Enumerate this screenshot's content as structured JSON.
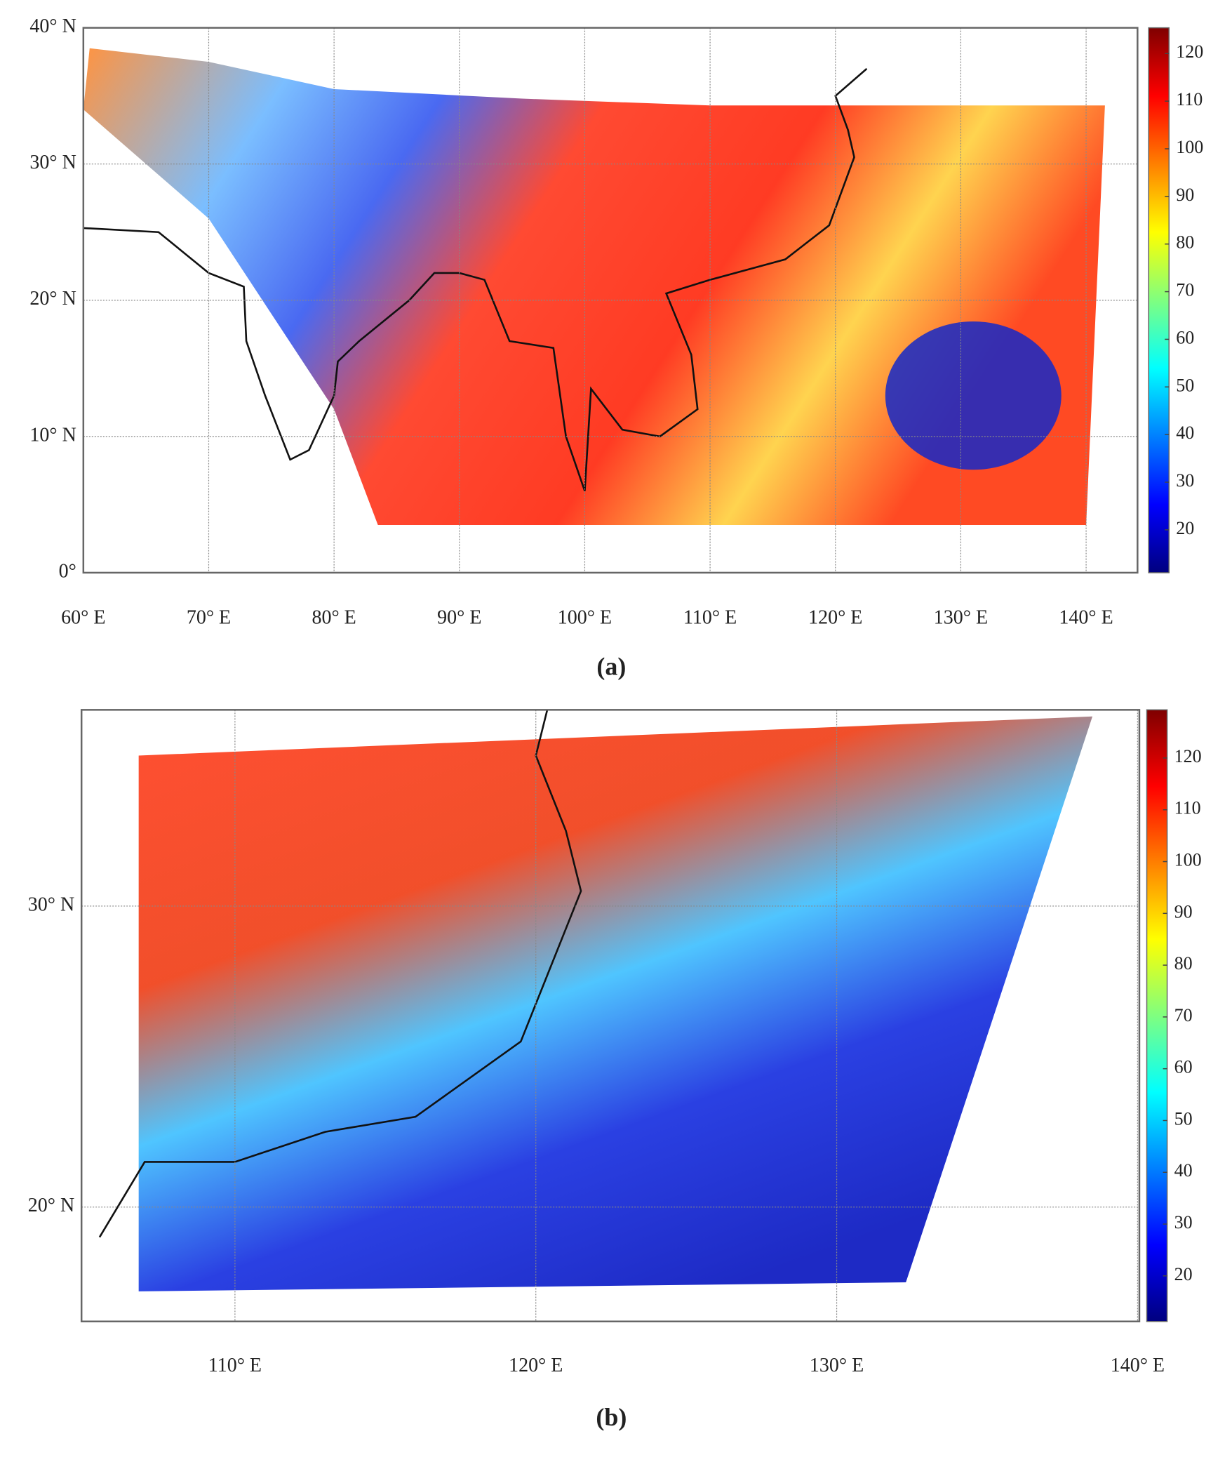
{
  "panels": [
    {
      "label": "(a)",
      "xlim": [
        60,
        144.1
      ],
      "ylim": [
        0,
        40
      ],
      "xticks": [
        {
          "value": 60,
          "label": "60° E"
        },
        {
          "value": 70,
          "label": "70° E"
        },
        {
          "value": 80,
          "label": "80° E"
        },
        {
          "value": 90,
          "label": "90° E"
        },
        {
          "value": 100,
          "label": "100° E"
        },
        {
          "value": 110,
          "label": "110° E"
        },
        {
          "value": 120,
          "label": "120° E"
        },
        {
          "value": 130,
          "label": "130° E"
        },
        {
          "value": 140,
          "label": "140° E"
        }
      ],
      "yticks": [
        {
          "value": 0,
          "label": "0°"
        },
        {
          "value": 10,
          "label": "10° N"
        },
        {
          "value": 20,
          "label": "20° N"
        },
        {
          "value": 30,
          "label": "30° N"
        },
        {
          "value": 40,
          "label": "40° N"
        }
      ],
      "clim": [
        11,
        125.4
      ],
      "cticks": [
        20,
        30,
        40,
        50,
        60,
        70,
        80,
        90,
        100,
        110,
        120
      ]
    },
    {
      "label": "(b)",
      "xlim": [
        104.9,
        140.06
      ],
      "ylim": [
        16.2,
        36.52
      ],
      "xticks": [
        {
          "value": 110,
          "label": "110° E"
        },
        {
          "value": 120,
          "label": "120° E"
        },
        {
          "value": 130,
          "label": "130° E"
        },
        {
          "value": 140,
          "label": "140° E"
        }
      ],
      "yticks": [
        {
          "value": 20,
          "label": "20° N"
        },
        {
          "value": 30,
          "label": "30° N"
        }
      ],
      "clim": [
        11.2,
        129.3
      ],
      "cticks": [
        20,
        30,
        40,
        50,
        60,
        70,
        80,
        90,
        100,
        110,
        120
      ]
    }
  ]
}
